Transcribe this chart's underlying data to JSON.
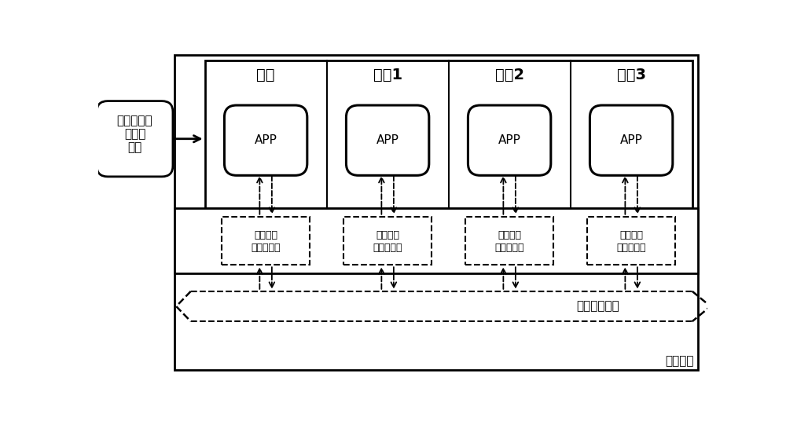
{
  "figsize": [
    10.0,
    5.36
  ],
  "dpi": 100,
  "bg_color": "#ffffff",
  "core_labels": [
    "主核",
    "从桧1",
    "从桧2",
    "从桧3"
  ],
  "ctrl_label_lines": [
    "虚拟数据",
    "总线控制器"
  ],
  "bus_label": "虚拟数据总线",
  "shared_mem_label": "共享内存",
  "config_label": "核间通信数\n据拓扑\n配置",
  "app_label": "APP",
  "font_size_core": 14,
  "font_size_app": 11,
  "font_size_ctrl": 9,
  "font_size_bus": 11,
  "font_size_shared": 11,
  "font_size_config": 11
}
